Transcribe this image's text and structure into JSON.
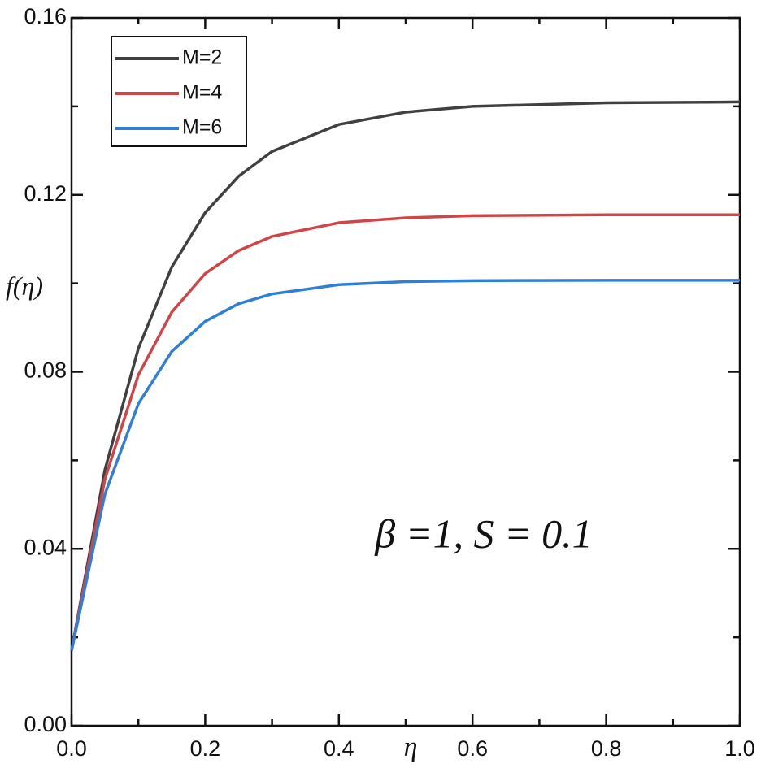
{
  "chart_data": {
    "type": "line",
    "x": [
      0,
      0.05,
      0.1,
      0.15,
      0.2,
      0.25,
      0.3,
      0.4,
      0.5,
      0.6,
      0.8,
      1.0
    ],
    "series": [
      {
        "name": "M=2",
        "color": "#404040",
        "values": [
          0.017,
          0.0579,
          0.0853,
          0.1037,
          0.116,
          0.1242,
          0.1298,
          0.1359,
          0.1387,
          0.14,
          0.1408,
          0.141
        ]
      },
      {
        "name": "M=4",
        "color": "#d04545",
        "values": [
          0.017,
          0.0558,
          0.0793,
          0.0935,
          0.1022,
          0.1074,
          0.1106,
          0.1137,
          0.1148,
          0.1153,
          0.1155,
          0.1155
        ]
      },
      {
        "name": "M=6",
        "color": "#2f7fd6",
        "values": [
          0.017,
          0.0524,
          0.0728,
          0.0846,
          0.0914,
          0.0954,
          0.0976,
          0.0997,
          0.1004,
          0.1006,
          0.1007,
          0.1007
        ]
      }
    ],
    "xlabel": "η",
    "ylabel": "f(η)",
    "annotation": "β =1, S = 0.1",
    "xlim": [
      0,
      1.0
    ],
    "ylim": [
      0,
      0.16
    ],
    "xticks": [
      {
        "value": 0,
        "label": "0.0"
      },
      0.2,
      0.4,
      0.6,
      0.8,
      {
        "value": 1.0,
        "label": "1.0"
      }
    ],
    "yticks": [
      {
        "value": 0,
        "label": "0.00"
      },
      0.04,
      0.08,
      0.12,
      0.16
    ],
    "xminorticks": [
      0.1,
      0.3,
      0.5,
      0.7,
      0.9
    ],
    "yminorticks": [
      0.02,
      0.06,
      0.1,
      0.14
    ],
    "legend": "upper left"
  }
}
